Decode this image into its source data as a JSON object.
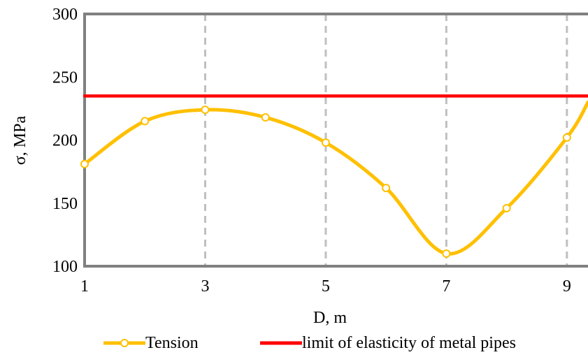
{
  "chart_data": {
    "type": "line",
    "xlabel": "D, m",
    "ylabel": "σ, MPa",
    "xlim": [
      1,
      9.35
    ],
    "ylim": [
      100,
      300
    ],
    "x_ticks": [
      "1",
      "3",
      "5",
      "7",
      "9"
    ],
    "y_ticks": [
      "100",
      "150",
      "200",
      "250",
      "300"
    ],
    "grid": "vertical dashed at x ticks",
    "legend_position": "bottom",
    "series": [
      {
        "name": "Tension",
        "color": "#FFC000",
        "marker": "open-circle",
        "smooth": true,
        "x": [
          1,
          2,
          3,
          4,
          5,
          6,
          7,
          8,
          9,
          9.35
        ],
        "y": [
          181,
          215,
          224,
          218,
          198,
          162,
          110,
          146,
          202,
          230
        ]
      },
      {
        "name": "limit of elasticity of metal pipes",
        "color": "#FF0000",
        "marker": "none",
        "x": [
          1,
          9.35
        ],
        "y": [
          235,
          235
        ]
      }
    ],
    "colors": {
      "axis": "#808080",
      "grid": "#BFBFBF",
      "marker_fill": "#FFFFFF"
    }
  }
}
